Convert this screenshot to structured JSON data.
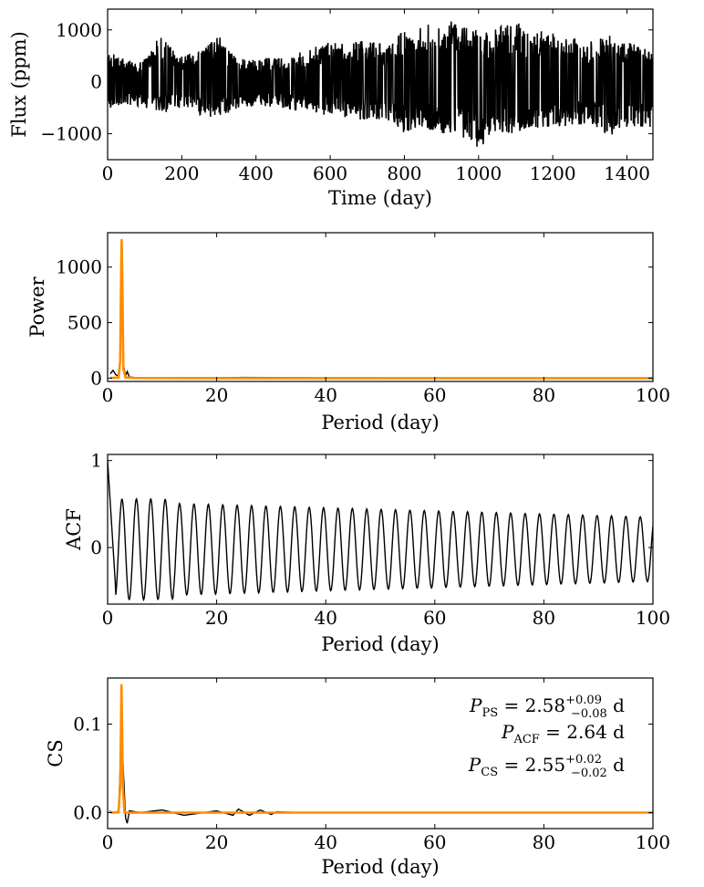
{
  "chart_data": [
    {
      "id": "lightcurve",
      "type": "line",
      "xlabel": "Time (day)",
      "ylabel": "Flux (ppm)",
      "xlim": [
        0,
        1470
      ],
      "ylim": [
        -1500,
        1400
      ],
      "xticks": [
        0,
        200,
        400,
        600,
        800,
        1000,
        1200,
        1400
      ],
      "yticks": [
        -1000,
        0,
        1000
      ],
      "ytick_labels": [
        "−1000",
        "0",
        "1000"
      ],
      "series": [
        {
          "color": "#000000",
          "x": [
            0,
            50,
            100,
            140,
            200,
            250,
            300,
            350,
            400,
            450,
            500,
            550,
            600,
            650,
            700,
            750,
            800,
            850,
            900,
            950,
            1000,
            1050,
            1100,
            1150,
            1200,
            1250,
            1300,
            1350,
            1400,
            1470
          ],
          "y_upper": [
            600,
            420,
            450,
            950,
            500,
            600,
            900,
            450,
            420,
            500,
            520,
            650,
            800,
            750,
            800,
            700,
            1000,
            1050,
            1250,
            1100,
            1000,
            1050,
            1150,
            1000,
            950,
            900,
            800,
            900,
            800,
            600
          ],
          "y_lower": [
            -500,
            -450,
            -500,
            -600,
            -550,
            -650,
            -700,
            -500,
            -450,
            -500,
            -550,
            -600,
            -650,
            -700,
            -750,
            -700,
            -1000,
            -900,
            -1000,
            -1050,
            -1300,
            -1000,
            -1000,
            -900,
            -900,
            -850,
            -800,
            -1050,
            -900,
            -900
          ]
        }
      ]
    },
    {
      "id": "periodogram",
      "type": "line",
      "xlabel": "Period (day)",
      "ylabel": "Power",
      "xlim": [
        0,
        100
      ],
      "ylim": [
        -30,
        1310
      ],
      "xticks": [
        0,
        20,
        40,
        60,
        80,
        100
      ],
      "yticks": [
        0,
        500,
        1000
      ],
      "series": [
        {
          "color": "#000000",
          "x": [
            0.5,
            1.0,
            1.5,
            2.0,
            2.3,
            2.58,
            2.9,
            3.3,
            3.6,
            4.0,
            5,
            10,
            20,
            25,
            40,
            60,
            100
          ],
          "y": [
            40,
            70,
            30,
            20,
            200,
            1250,
            120,
            20,
            60,
            10,
            5,
            3,
            2,
            6,
            2,
            1,
            1
          ]
        },
        {
          "color": "#ff8c00",
          "x": [
            0.5,
            1.0,
            2.0,
            2.3,
            2.5,
            2.58,
            2.7,
            2.9,
            3.3,
            5,
            20,
            50,
            100
          ],
          "y": [
            2,
            2,
            5,
            150,
            1000,
            1250,
            900,
            80,
            5,
            1,
            0,
            0,
            0
          ]
        }
      ]
    },
    {
      "id": "acf",
      "type": "line",
      "xlabel": "Period (day)",
      "ylabel": "ACF",
      "xlim": [
        0,
        100
      ],
      "ylim": [
        -0.65,
        1.07
      ],
      "xticks": [
        0,
        20,
        40,
        60,
        80,
        100
      ],
      "yticks": [
        0,
        1
      ],
      "series": [
        {
          "color": "#000000",
          "period": 2.64,
          "start": 1.0
        }
      ]
    },
    {
      "id": "cs",
      "type": "line",
      "xlabel": "Period (day)",
      "ylabel": "CS",
      "xlim": [
        0,
        100
      ],
      "ylim": [
        -0.018,
        0.152
      ],
      "xticks": [
        0,
        20,
        40,
        60,
        80,
        100
      ],
      "yticks": [
        0.0,
        0.1
      ],
      "ytick_labels": [
        "0.0",
        "0.1"
      ],
      "series": [
        {
          "color": "#000000",
          "x": [
            0.3,
            1,
            2,
            2.3,
            2.55,
            2.8,
            3.3,
            3.6,
            4,
            6,
            10,
            14,
            20,
            23,
            24,
            26,
            28,
            30,
            31,
            35,
            60,
            100
          ],
          "y": [
            0.002,
            0.0,
            0.0,
            0.05,
            0.14,
            0.06,
            -0.006,
            -0.012,
            0.002,
            0.0,
            0.003,
            -0.003,
            0.002,
            -0.003,
            0.004,
            -0.003,
            0.003,
            -0.002,
            0.001,
            0.0,
            0.0,
            0.0
          ]
        },
        {
          "color": "#ff8c00",
          "x": [
            0.3,
            1,
            2,
            2.3,
            2.45,
            2.55,
            2.65,
            2.8,
            3.1,
            5,
            20,
            60,
            100
          ],
          "y": [
            0.001,
            0.0,
            0.001,
            0.03,
            0.1,
            0.145,
            0.1,
            0.03,
            0.0,
            0.0,
            0.0,
            0.0,
            0.0
          ]
        }
      ],
      "annotations": {
        "ps": {
          "main": "P",
          "sub": "PS",
          "rest": " = 2.58",
          "sup": "+0.09",
          "inf": "−0.08",
          "unit": " d"
        },
        "acf": {
          "main": "P",
          "sub": "ACF",
          "rest": " = 2.64",
          "unit": " d"
        },
        "csv": {
          "main": "P",
          "sub": "CS",
          "rest": " = 2.55",
          "sup": "+0.02",
          "inf": "−0.02",
          "unit": " d"
        }
      }
    }
  ]
}
